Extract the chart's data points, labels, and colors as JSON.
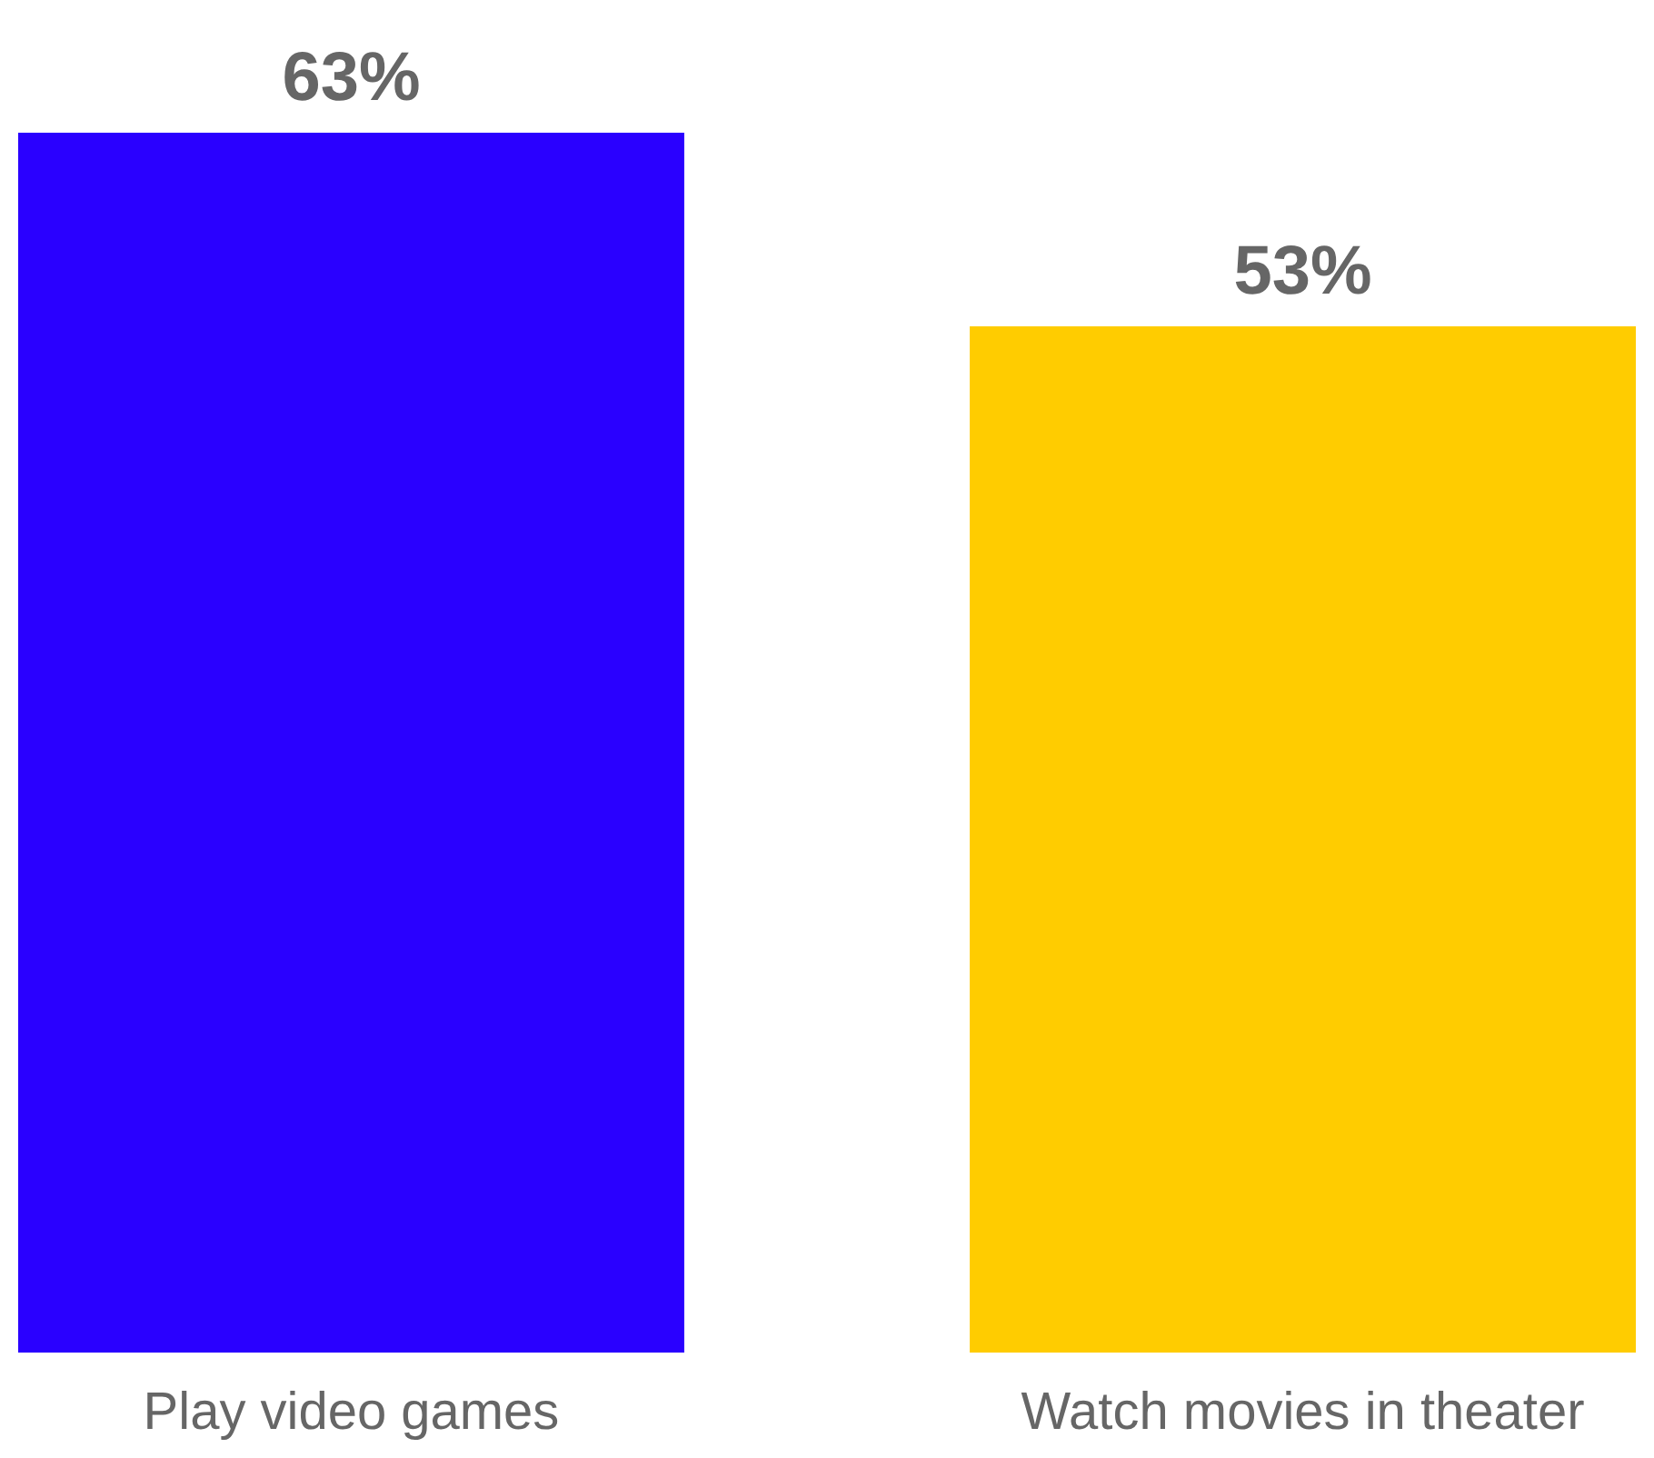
{
  "chart_data": {
    "type": "bar",
    "categories": [
      "Play video games",
      "Watch movies in theater"
    ],
    "values": [
      63,
      53
    ],
    "colors": [
      "#2a00ff",
      "#ffcc00"
    ],
    "value_labels": [
      "63%",
      "53%"
    ]
  }
}
